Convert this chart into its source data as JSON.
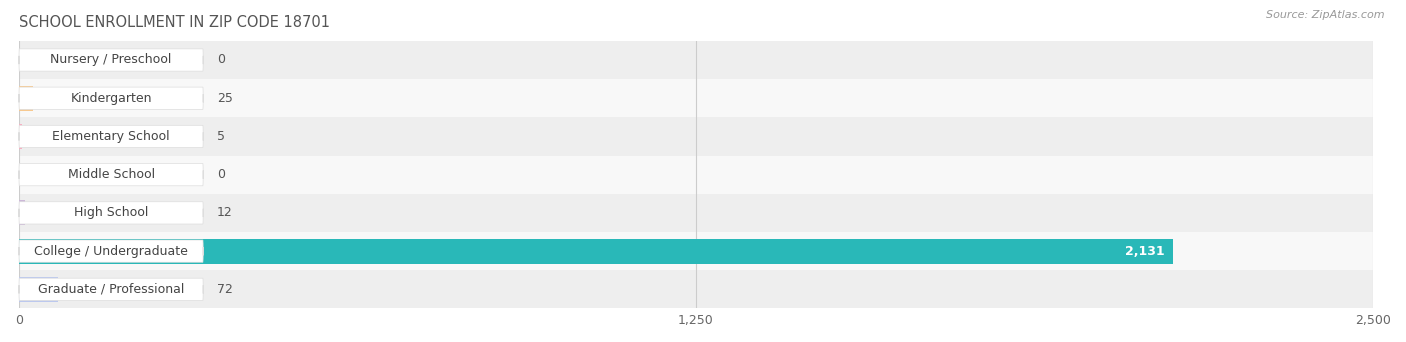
{
  "title": "SCHOOL ENROLLMENT IN ZIP CODE 18701",
  "source": "Source: ZipAtlas.com",
  "categories": [
    "Nursery / Preschool",
    "Kindergarten",
    "Elementary School",
    "Middle School",
    "High School",
    "College / Undergraduate",
    "Graduate / Professional"
  ],
  "values": [
    0,
    25,
    5,
    0,
    12,
    2131,
    72
  ],
  "bar_colors": [
    "#f7afc2",
    "#f7c990",
    "#f7afc2",
    "#b3c8ee",
    "#ccb8d8",
    "#29b8b8",
    "#bcc8ee"
  ],
  "xlim": [
    0,
    2500
  ],
  "xticks": [
    0,
    1250,
    2500
  ],
  "bar_height": 0.65,
  "row_bg_colors": [
    "#eeeeee",
    "#f8f8f8"
  ],
  "title_fontsize": 10.5,
  "source_fontsize": 8,
  "label_fontsize": 9,
  "value_fontsize": 9,
  "tick_fontsize": 9,
  "figsize": [
    14.06,
    3.42
  ],
  "dpi": 100
}
